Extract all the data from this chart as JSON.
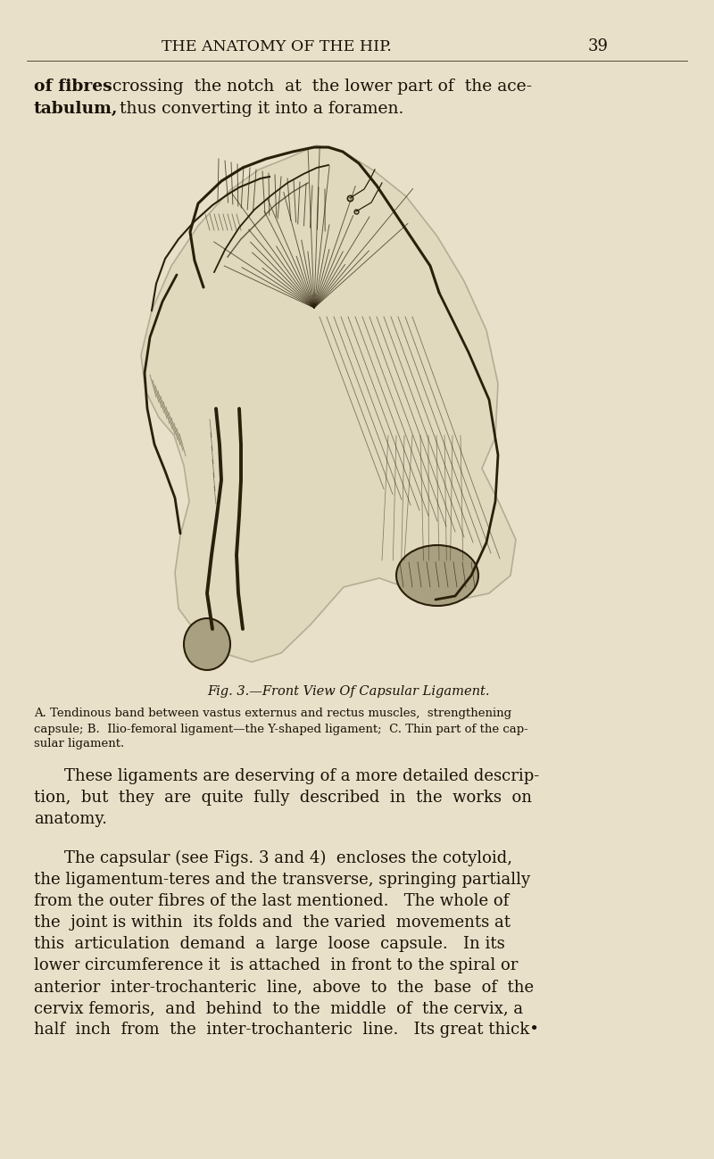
{
  "bg_color": "#e8e0c8",
  "text_color": "#1a1208",
  "fig_color": "#2a1f0a",
  "header_text": "THE ANATOMY OF THE HIP.",
  "page_number": "39",
  "opening_bold1": "of fibres",
  "opening_normal1": " crossing  the notch  at  the lower part of  the ace-",
  "opening_bold2": "tabulum,",
  "opening_normal2": "  thus converting it into a foramen.",
  "fig_caption": "Fig. 3.—Front View Of Capsular Ligament.",
  "caption_body_lines": [
    "A. Tendinous band between vastus externus and rectus muscles,  strengthening",
    "capsule; B.  Ilio-femoral ligament—the Y-shaped ligament;  C. Thin part of the cap-",
    "sular ligament."
  ],
  "para1_lines": [
    "These ligaments are deserving of a more detailed descrip-",
    "tion,  but  they  are  quite  fully  described  in  the  works  on",
    "anatomy."
  ],
  "para2_lines": [
    "The capsular (see Figs. 3 and 4)  encloses the cotyloid,",
    "the ligamentum-teres and the transverse, springing partially",
    "from the outer fibres of the last mentioned.   The whole of",
    "the  joint is within  its folds and  the varied  movements at",
    "this  articulation  demand  a  large  loose  capsule.   In its",
    "lower circumference it  is attached  in front to the spiral or",
    "anterior  inter-trochanteric  line,  above  to  the  base  of  the",
    "cervix femoris,  and  behind  to the  middle  of  the cervix, a",
    "half  inch  from  the  inter-trochanteric  line.   Its great thick•"
  ]
}
